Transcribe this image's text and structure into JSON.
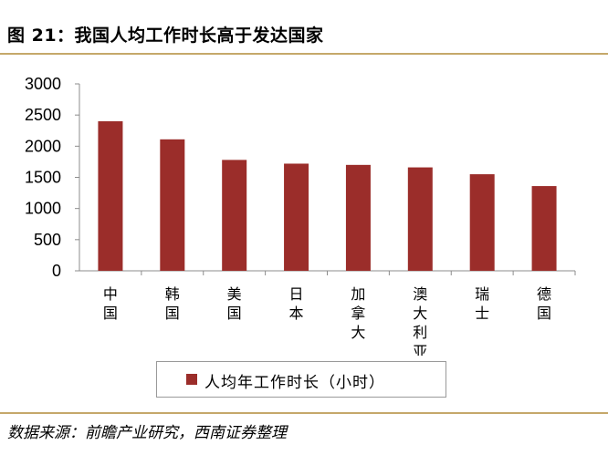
{
  "figure": {
    "title": "图 21：我国人均工作时长高于发达国家",
    "source": "数据来源：前瞻产业研究，西南证券整理"
  },
  "colors": {
    "bar": "#9b2d2a",
    "rule": "#c5a86a"
  },
  "chart_data": {
    "type": "bar",
    "categories": [
      "中国",
      "韩国",
      "美国",
      "日本",
      "加拿大",
      "澳大利亚",
      "瑞士",
      "德国"
    ],
    "series": [
      {
        "name": "人均年工作时长（小时）",
        "values": [
          2400,
          2110,
          1780,
          1720,
          1700,
          1660,
          1550,
          1360
        ]
      }
    ],
    "yticks": [
      0,
      500,
      1000,
      1500,
      2000,
      2500,
      3000
    ],
    "ylim": [
      0,
      3000
    ],
    "legend_position": "bottom",
    "grid": false
  }
}
